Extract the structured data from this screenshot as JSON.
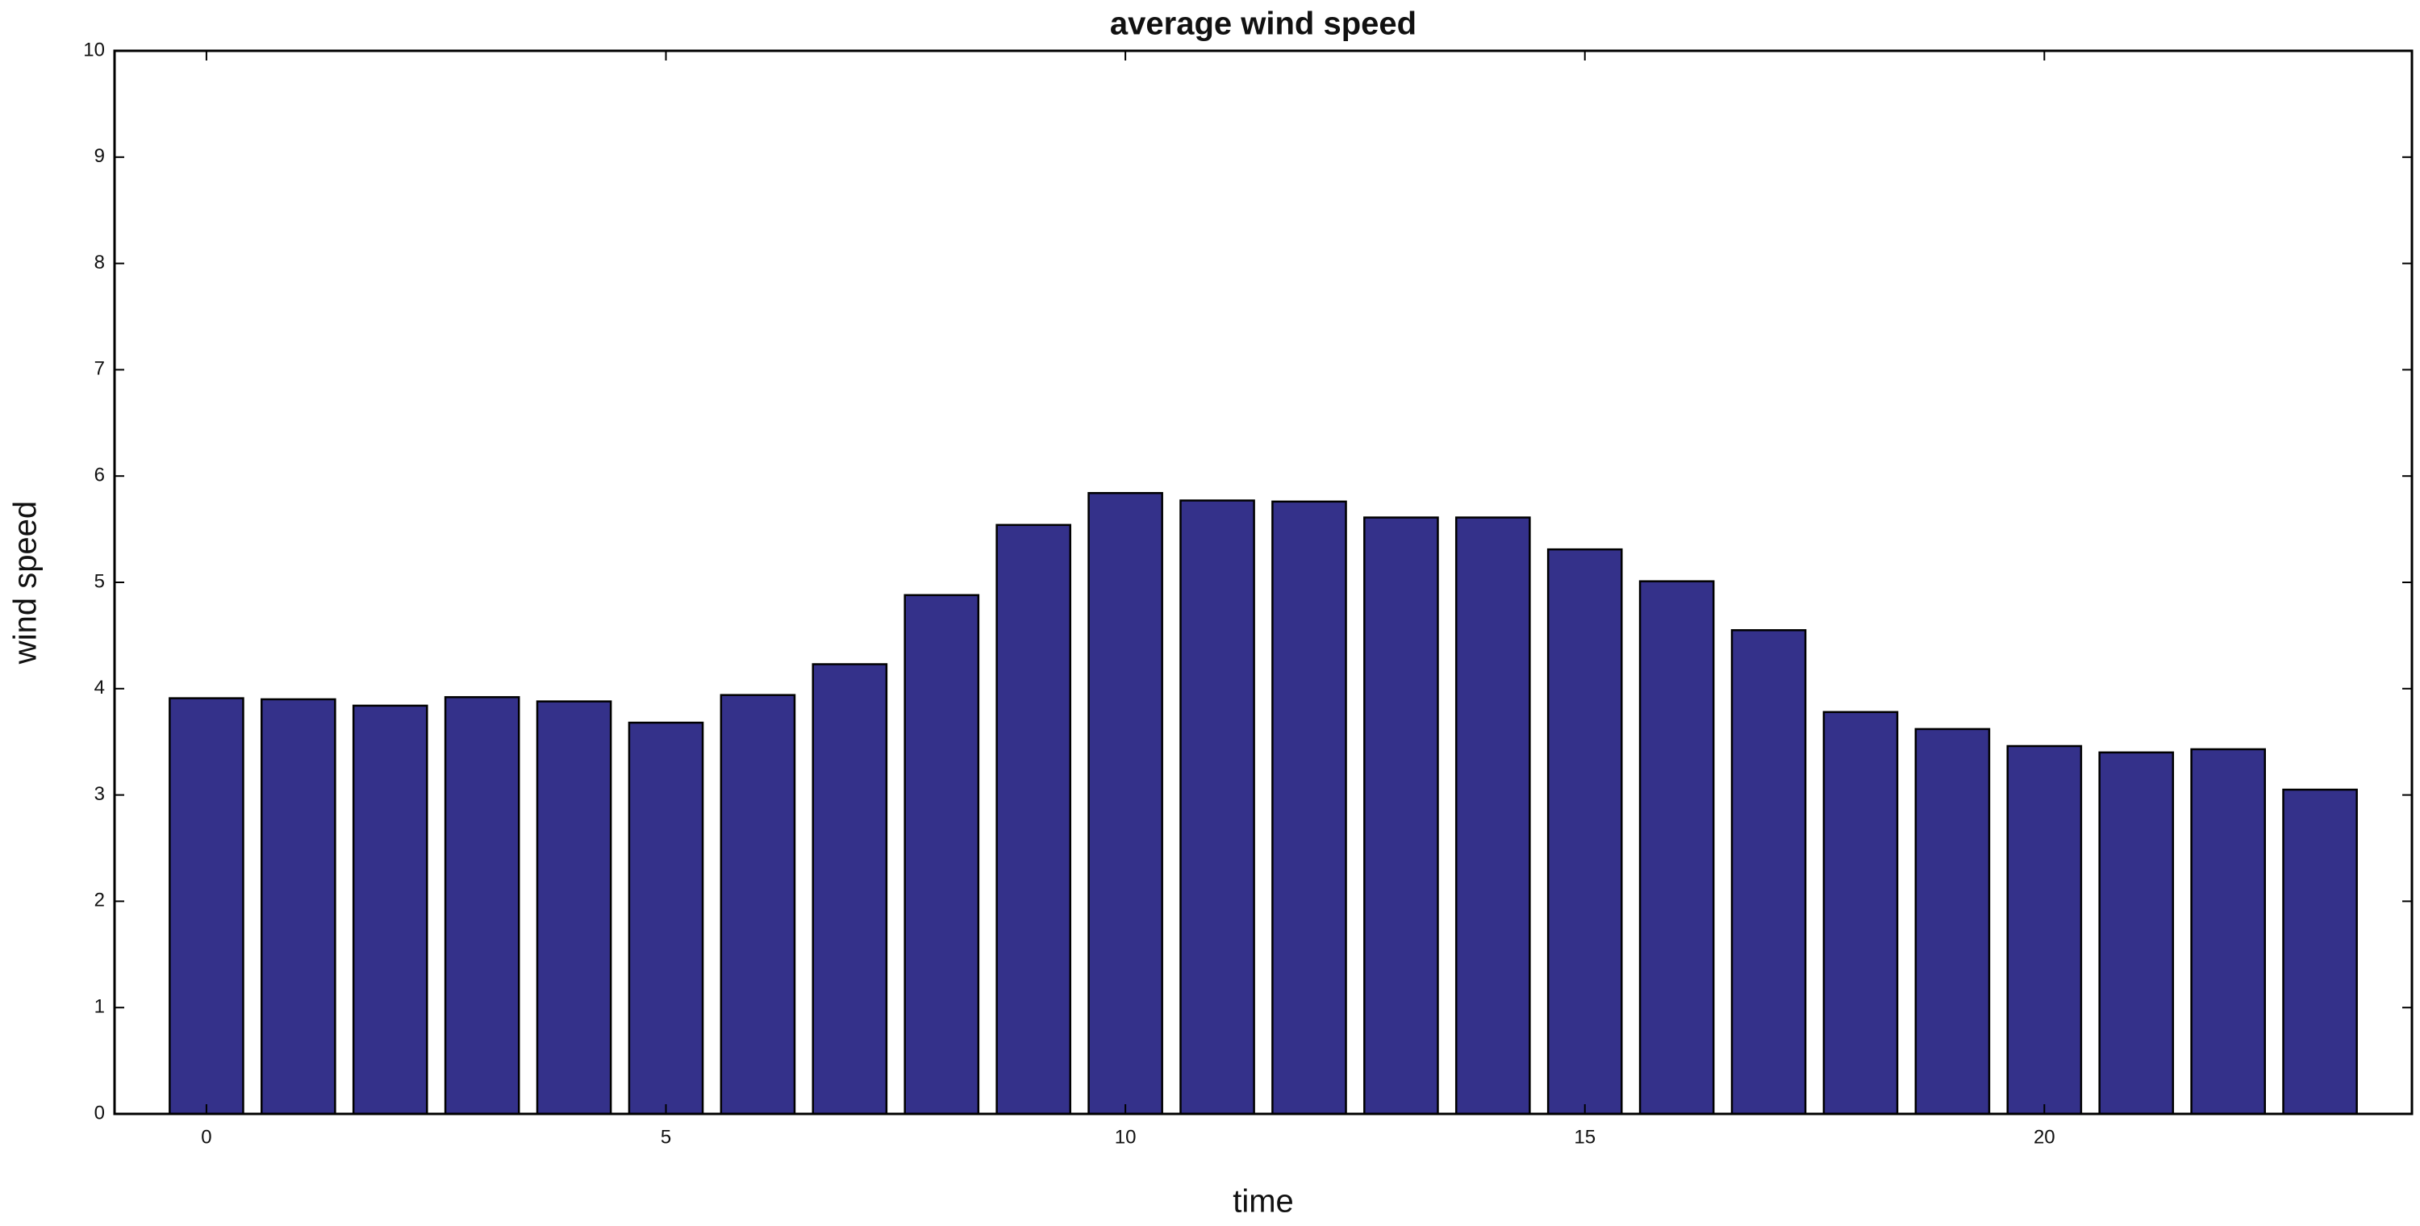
{
  "chart_data": {
    "type": "bar",
    "title": "average wind speed",
    "x_label": "time",
    "y_label": "wind speed",
    "x": [
      0,
      1,
      2,
      3,
      4,
      5,
      6,
      7,
      8,
      9,
      10,
      11,
      12,
      13,
      14,
      15,
      16,
      17,
      18,
      19,
      20,
      21,
      22,
      23
    ],
    "values": [
      3.91,
      3.9,
      3.84,
      3.92,
      3.88,
      3.68,
      3.94,
      4.23,
      4.88,
      5.54,
      5.84,
      5.77,
      5.76,
      5.61,
      5.61,
      5.31,
      5.01,
      4.55,
      3.78,
      3.62,
      3.46,
      3.4,
      3.43,
      3.05
    ],
    "color": "#34318a",
    "xlim": [
      -1,
      24
    ],
    "xticks": [
      0,
      5,
      10,
      15,
      20
    ],
    "ylim": [
      0,
      10
    ],
    "yticks": [
      0,
      1,
      2,
      3,
      4,
      5,
      6,
      7,
      8,
      9,
      10
    ],
    "grid": false
  }
}
